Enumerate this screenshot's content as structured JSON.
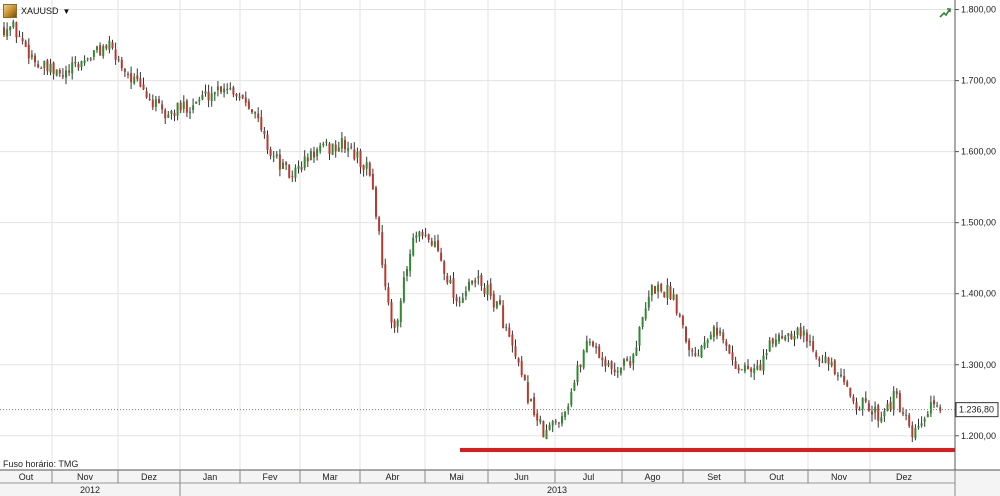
{
  "header": {
    "symbol": "XAUUSD",
    "dropdown_icon": "caret-down-icon",
    "trend_icon": "trend-up-icon"
  },
  "footer": {
    "timezone": "Fuso horário: TMG"
  },
  "price_tag": "1.236,80",
  "colors": {
    "bull": "#2f8a2f",
    "bear": "#b83a2e",
    "wick": "#333333",
    "grid": "#e3e3e3",
    "support_line": "#e11b1b",
    "current_price_line": "#e05050"
  },
  "chart_data": {
    "type": "candlestick",
    "title": "",
    "y_axis": {
      "position": "right",
      "range": [
        1180,
        1805
      ],
      "ticks": [
        1200,
        1300,
        1400,
        1500,
        1600,
        1700,
        1800
      ],
      "tick_labels": [
        "1.200,00",
        "1.300,00",
        "1.400,00",
        "1.500,00",
        "1.600,00",
        "1.700,00",
        "1.800,00"
      ]
    },
    "x_axis": {
      "months": [
        "Out",
        "Nov",
        "Dez",
        "Jan",
        "Fev",
        "Mar",
        "Abr",
        "Mai",
        "Jun",
        "Jul",
        "Ago",
        "Set",
        "Out",
        "Nov",
        "Dez"
      ],
      "years": [
        "2012",
        "2013"
      ]
    },
    "current_price": 1236.8,
    "support_level": 1180,
    "price_path": [
      [
        "Out",
        1775
      ],
      [
        "Out",
        1720
      ],
      [
        "Nov",
        1705
      ],
      [
        "Nov",
        1730
      ],
      [
        "Nov",
        1750
      ],
      [
        "Dez",
        1700
      ],
      [
        "Dez",
        1650
      ],
      [
        "Jan",
        1670
      ],
      [
        "Jan",
        1695
      ],
      [
        "Fev",
        1670
      ],
      [
        "Fev",
        1600
      ],
      [
        "Fev",
        1565
      ],
      [
        "Mar",
        1600
      ],
      [
        "Mar",
        1610
      ],
      [
        "Abr",
        1570
      ],
      [
        "Abr",
        1340
      ],
      [
        "Abr",
        1480
      ],
      [
        "Mai",
        1470
      ],
      [
        "Mai",
        1390
      ],
      [
        "Mai",
        1420
      ],
      [
        "Jun",
        1380
      ],
      [
        "Jun",
        1280
      ],
      [
        "Jun",
        1200
      ],
      [
        "Jul",
        1240
      ],
      [
        "Jul",
        1340
      ],
      [
        "Jul",
        1290
      ],
      [
        "Ago",
        1310
      ],
      [
        "Ago",
        1410
      ],
      [
        "Ago",
        1400
      ],
      [
        "Set",
        1310
      ],
      [
        "Set",
        1360
      ],
      [
        "Set",
        1300
      ],
      [
        "Out",
        1290
      ],
      [
        "Out",
        1340
      ],
      [
        "Out",
        1350
      ],
      [
        "Nov",
        1310
      ],
      [
        "Nov",
        1250
      ],
      [
        "Dez",
        1230
      ],
      [
        "Dez",
        1255
      ],
      [
        "Dez",
        1195
      ],
      [
        "Dez",
        1236.8
      ]
    ]
  }
}
